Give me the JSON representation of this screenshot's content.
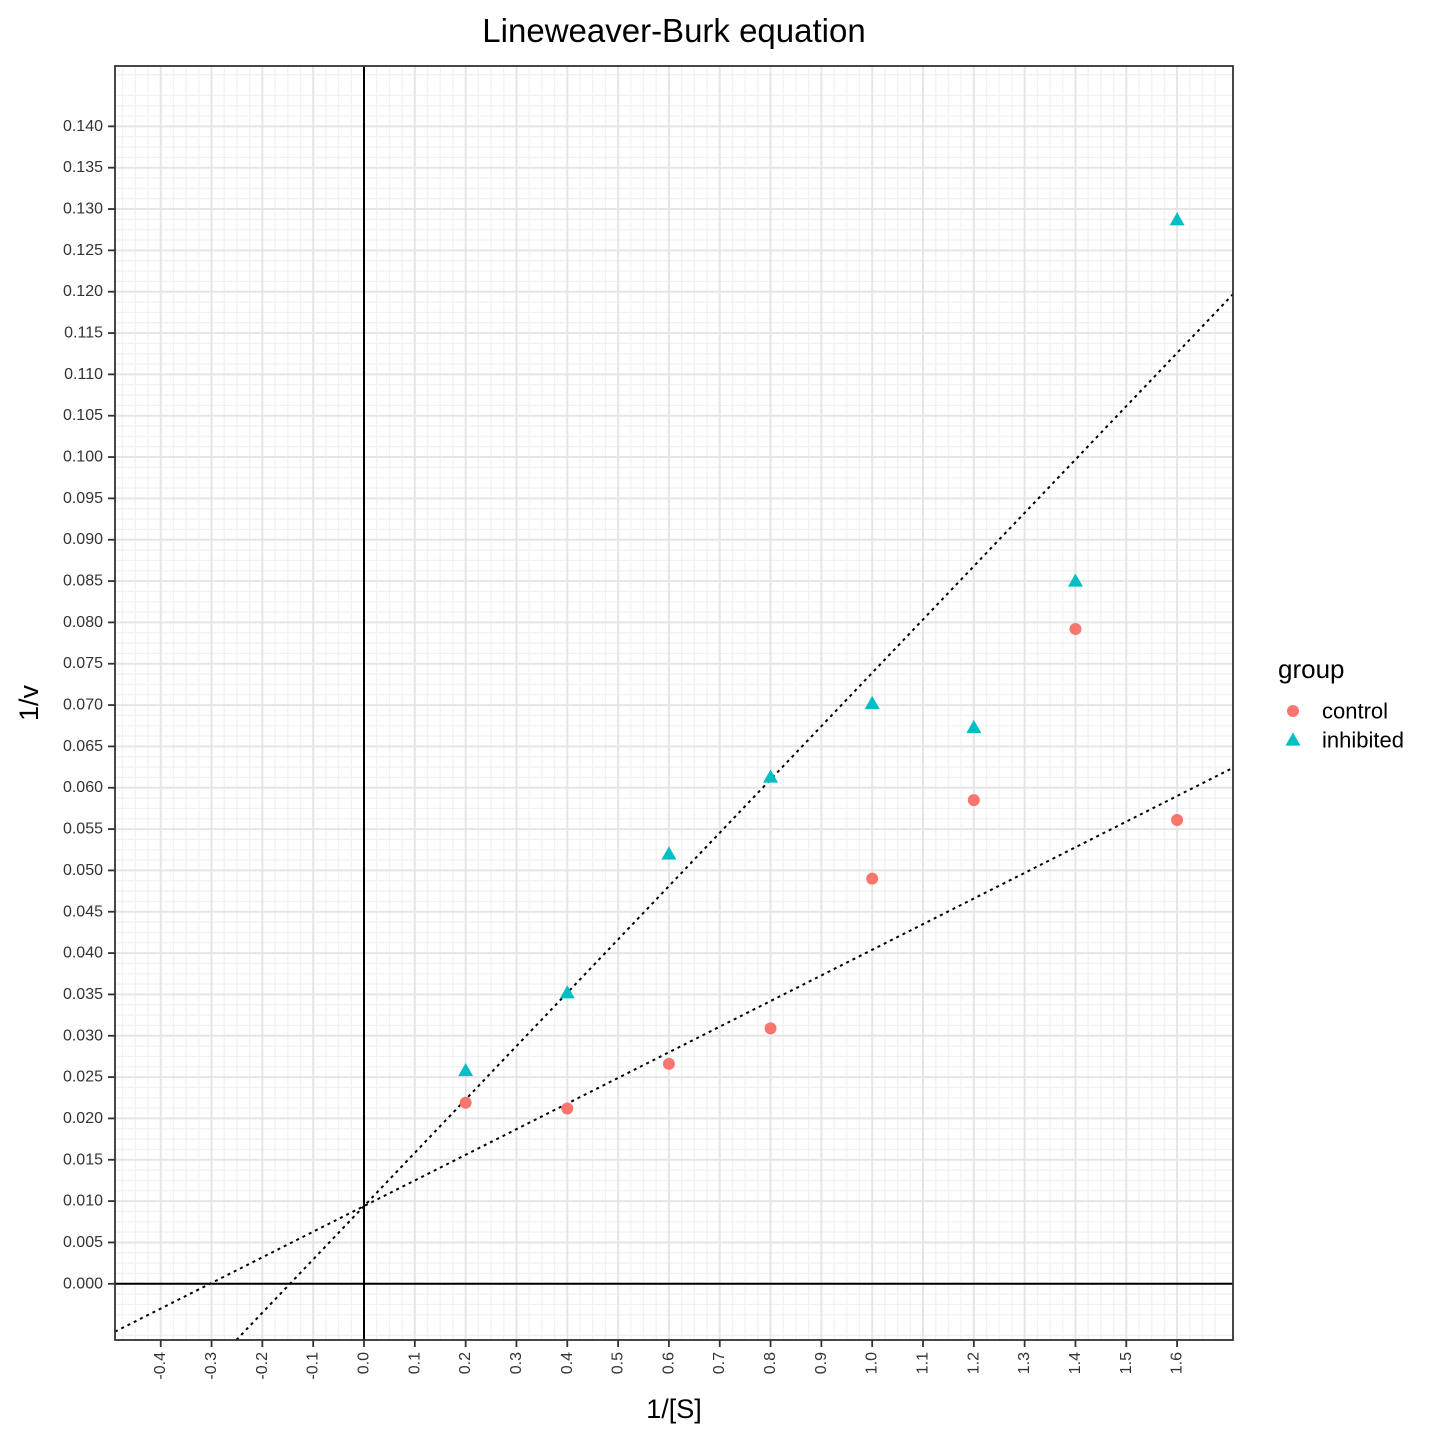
{
  "chart_data": {
    "type": "scatter",
    "title": "Lineweaver-Burk equation",
    "xlabel": "1/[S]",
    "ylabel": "1/v",
    "xlim": [
      -0.49,
      1.71
    ],
    "ylim": [
      -0.0068,
      0.1473
    ],
    "x_ticks": [
      "-0.4",
      "-0.3",
      "-0.2",
      "-0.1",
      "0.0",
      "0.1",
      "0.2",
      "0.3",
      "0.4",
      "0.5",
      "0.6",
      "0.7",
      "0.8",
      "0.9",
      "1.0",
      "1.1",
      "1.2",
      "1.3",
      "1.4",
      "1.5",
      "1.6"
    ],
    "y_ticks": [
      "0.000",
      "0.005",
      "0.010",
      "0.015",
      "0.020",
      "0.025",
      "0.030",
      "0.035",
      "0.040",
      "0.045",
      "0.050",
      "0.055",
      "0.060",
      "0.065",
      "0.070",
      "0.075",
      "0.080",
      "0.085",
      "0.090",
      "0.095",
      "0.100",
      "0.105",
      "0.110",
      "0.115",
      "0.120",
      "0.125",
      "0.130",
      "0.135",
      "0.140"
    ],
    "grid": true,
    "legend_title": "group",
    "legend_position": "right",
    "series": [
      {
        "name": "control",
        "color": "#F8766D",
        "marker": "circle",
        "x": [
          0.2,
          0.4,
          0.6,
          0.8,
          1.0,
          1.2,
          1.4,
          1.6
        ],
        "y": [
          0.0219,
          0.0212,
          0.0266,
          0.0309,
          0.049,
          0.0585,
          0.0792,
          0.0561
        ]
      },
      {
        "name": "inhibited",
        "color": "#00BFC4",
        "marker": "triangle",
        "x": [
          0.2,
          0.4,
          0.6,
          0.8,
          1.0,
          1.2,
          1.4,
          1.6
        ],
        "y": [
          0.0258,
          0.0352,
          0.052,
          0.0613,
          0.0702,
          0.0673,
          0.085,
          0.1287
        ]
      }
    ],
    "fit_lines": [
      {
        "group": "control",
        "intercept": 0.0094,
        "slope": 0.031,
        "style": "dotted"
      },
      {
        "group": "inhibited",
        "intercept": 0.0094,
        "slope": 0.0645,
        "style": "dotted"
      }
    ],
    "reference_lines": {
      "x": 0,
      "y": 0
    }
  }
}
